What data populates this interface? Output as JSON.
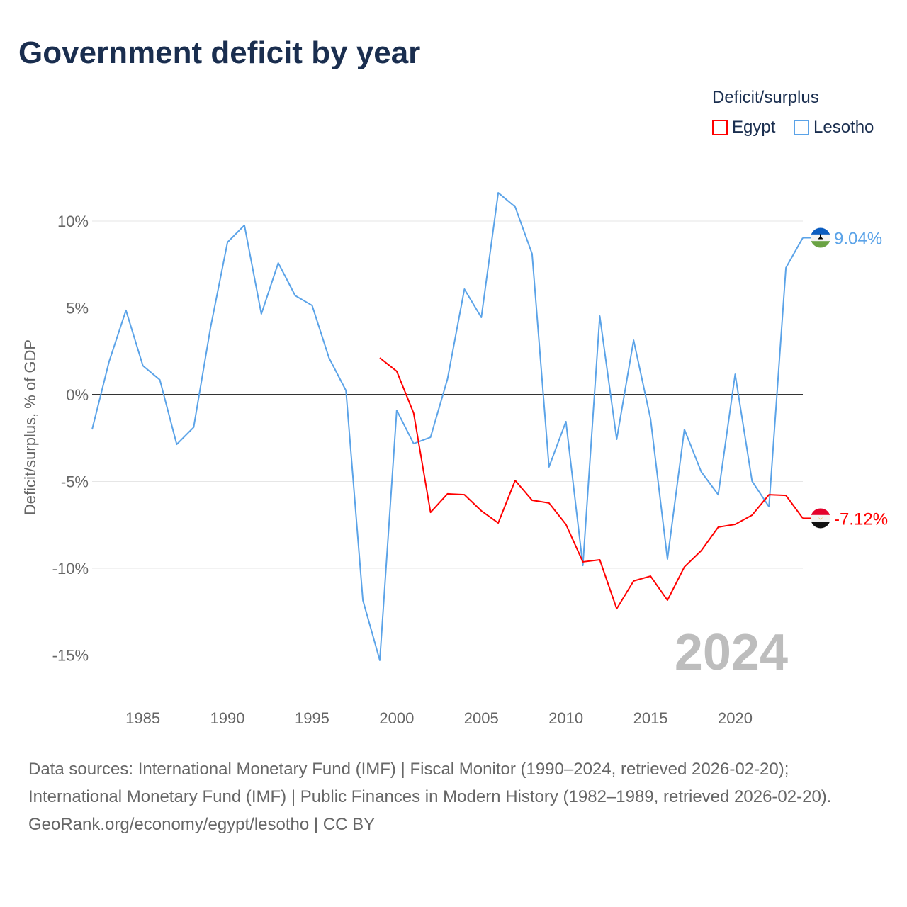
{
  "title": "Government deficit by year",
  "legend": {
    "title": "Deficit/surplus",
    "items": [
      {
        "name": "Egypt",
        "color": "#ff0000"
      },
      {
        "name": "Lesotho",
        "color": "#5ba3e8"
      }
    ]
  },
  "watermark_year": "2024",
  "sources": [
    "Data sources: International Monetary Fund (IMF) | Fiscal Monitor (1990–2024, retrieved 2026-02-20); International Monetary Fund (IMF) | Public Finances in Modern History (1982–1989, retrieved 2026-02-20).",
    "GeoRank.org/economy/egypt/lesotho | CC BY"
  ],
  "chart_data": {
    "type": "line",
    "title": "Government deficit by year",
    "ylabel": "Deficit/surplus, % of GDP",
    "xlabel": "",
    "ylim": [
      -16,
      12
    ],
    "xlim": [
      1982,
      2024
    ],
    "yticks": [
      10,
      5,
      0,
      -5,
      -10,
      -15
    ],
    "ytick_labels": [
      "10%",
      "5%",
      "0%",
      "-5%",
      "-10%",
      "-15%"
    ],
    "xticks": [
      1985,
      1990,
      1995,
      2000,
      2005,
      2010,
      2015,
      2020
    ],
    "xtick_labels": [
      "1985",
      "1990",
      "1995",
      "2000",
      "2005",
      "2010",
      "2015",
      "2020"
    ],
    "legend_placement": "top-right",
    "series": [
      {
        "name": "Lesotho",
        "color": "#5ba3e8",
        "end_label": "9.04%",
        "x": [
          1982,
          1983,
          1984,
          1985,
          1986,
          1987,
          1988,
          1989,
          1990,
          1991,
          1992,
          1993,
          1994,
          1995,
          1996,
          1997,
          1998,
          1999,
          2000,
          2001,
          2002,
          2003,
          2004,
          2005,
          2006,
          2007,
          2008,
          2009,
          2010,
          2011,
          2012,
          2013,
          2014,
          2015,
          2016,
          2017,
          2018,
          2019,
          2020,
          2021,
          2022,
          2023,
          2024
        ],
        "values": [
          -2.0,
          1.9,
          4.86,
          1.67,
          0.86,
          -2.86,
          -1.88,
          3.88,
          8.78,
          9.76,
          4.65,
          7.59,
          5.71,
          5.14,
          2.12,
          0.24,
          -11.84,
          -15.3,
          -0.9,
          -2.82,
          -2.45,
          0.9,
          6.08,
          4.45,
          11.63,
          10.82,
          8.12,
          -4.16,
          -1.55,
          -9.84,
          4.53,
          -2.57,
          3.14,
          -1.39,
          -9.47,
          -2.0,
          -4.45,
          -5.76,
          1.18,
          -4.98,
          -6.45,
          7.31,
          9.04
        ]
      },
      {
        "name": "Egypt",
        "color": "#ff0000",
        "end_label": "-7.12%",
        "x": [
          1999,
          2000,
          2001,
          2002,
          2003,
          2004,
          2005,
          2006,
          2007,
          2008,
          2009,
          2010,
          2011,
          2012,
          2013,
          2014,
          2015,
          2016,
          2017,
          2018,
          2019,
          2020,
          2021,
          2022,
          2023,
          2024
        ],
        "values": [
          2.12,
          1.35,
          -1.06,
          -6.78,
          -5.71,
          -5.76,
          -6.69,
          -7.39,
          -4.94,
          -6.08,
          -6.24,
          -7.47,
          -9.63,
          -9.51,
          -12.33,
          -10.73,
          -10.45,
          -11.84,
          -9.92,
          -8.98,
          -7.63,
          -7.47,
          -6.94,
          -5.76,
          -5.8,
          -7.12
        ]
      }
    ]
  }
}
